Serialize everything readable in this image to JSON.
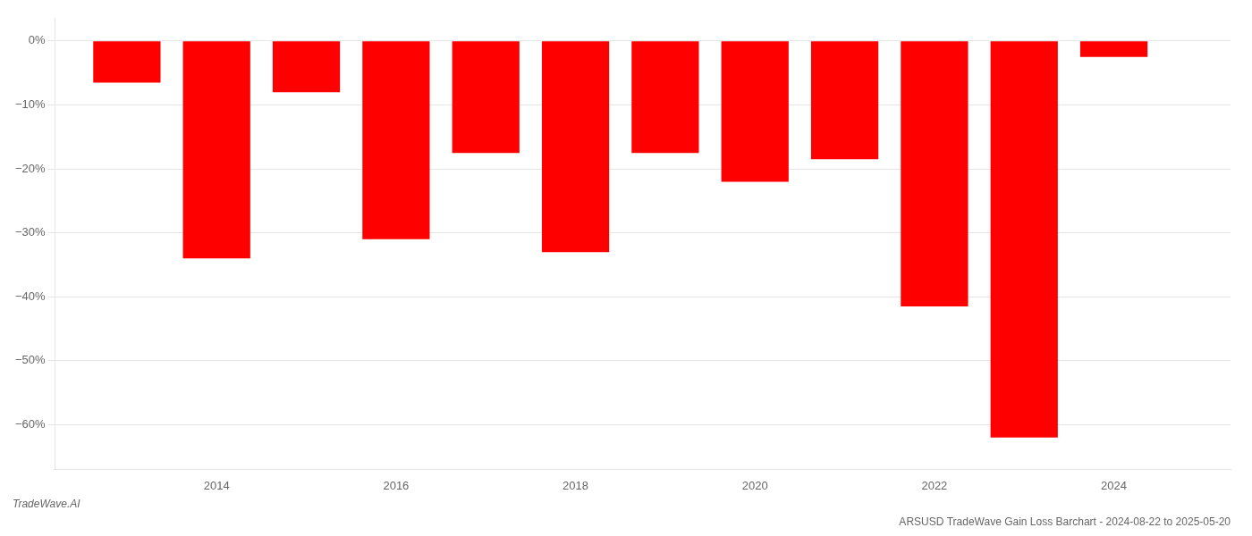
{
  "chart_data": {
    "type": "bar",
    "title": "ARSUSD TradeWave Gain Loss Barchart - 2024-08-22 to 2025-05-20",
    "annotations": [
      "TradeWave.AI"
    ],
    "x": [
      2013,
      2014,
      2015,
      2016,
      2017,
      2018,
      2019,
      2020,
      2021,
      2022,
      2023,
      2024
    ],
    "values": [
      -6.5,
      -34.0,
      -8.0,
      -31.0,
      -17.5,
      -33.0,
      -17.5,
      -22.0,
      -18.5,
      -41.5,
      -62.0,
      -2.5
    ],
    "color": "#ff0000",
    "xlim": [
      2012.2,
      2025.3
    ],
    "xticks": [
      2014,
      2016,
      2018,
      2020,
      2022,
      2024
    ],
    "ylim": [
      -67,
      3.5
    ],
    "yticks": [
      {
        "value": 0,
        "label": "0%"
      },
      {
        "value": -10,
        "label": "−10%"
      },
      {
        "value": -20,
        "label": "−20%"
      },
      {
        "value": -30,
        "label": "−30%"
      },
      {
        "value": -40,
        "label": "−40%"
      },
      {
        "value": -50,
        "label": "−50%"
      },
      {
        "value": -60,
        "label": "−60%"
      }
    ],
    "grid": true
  }
}
